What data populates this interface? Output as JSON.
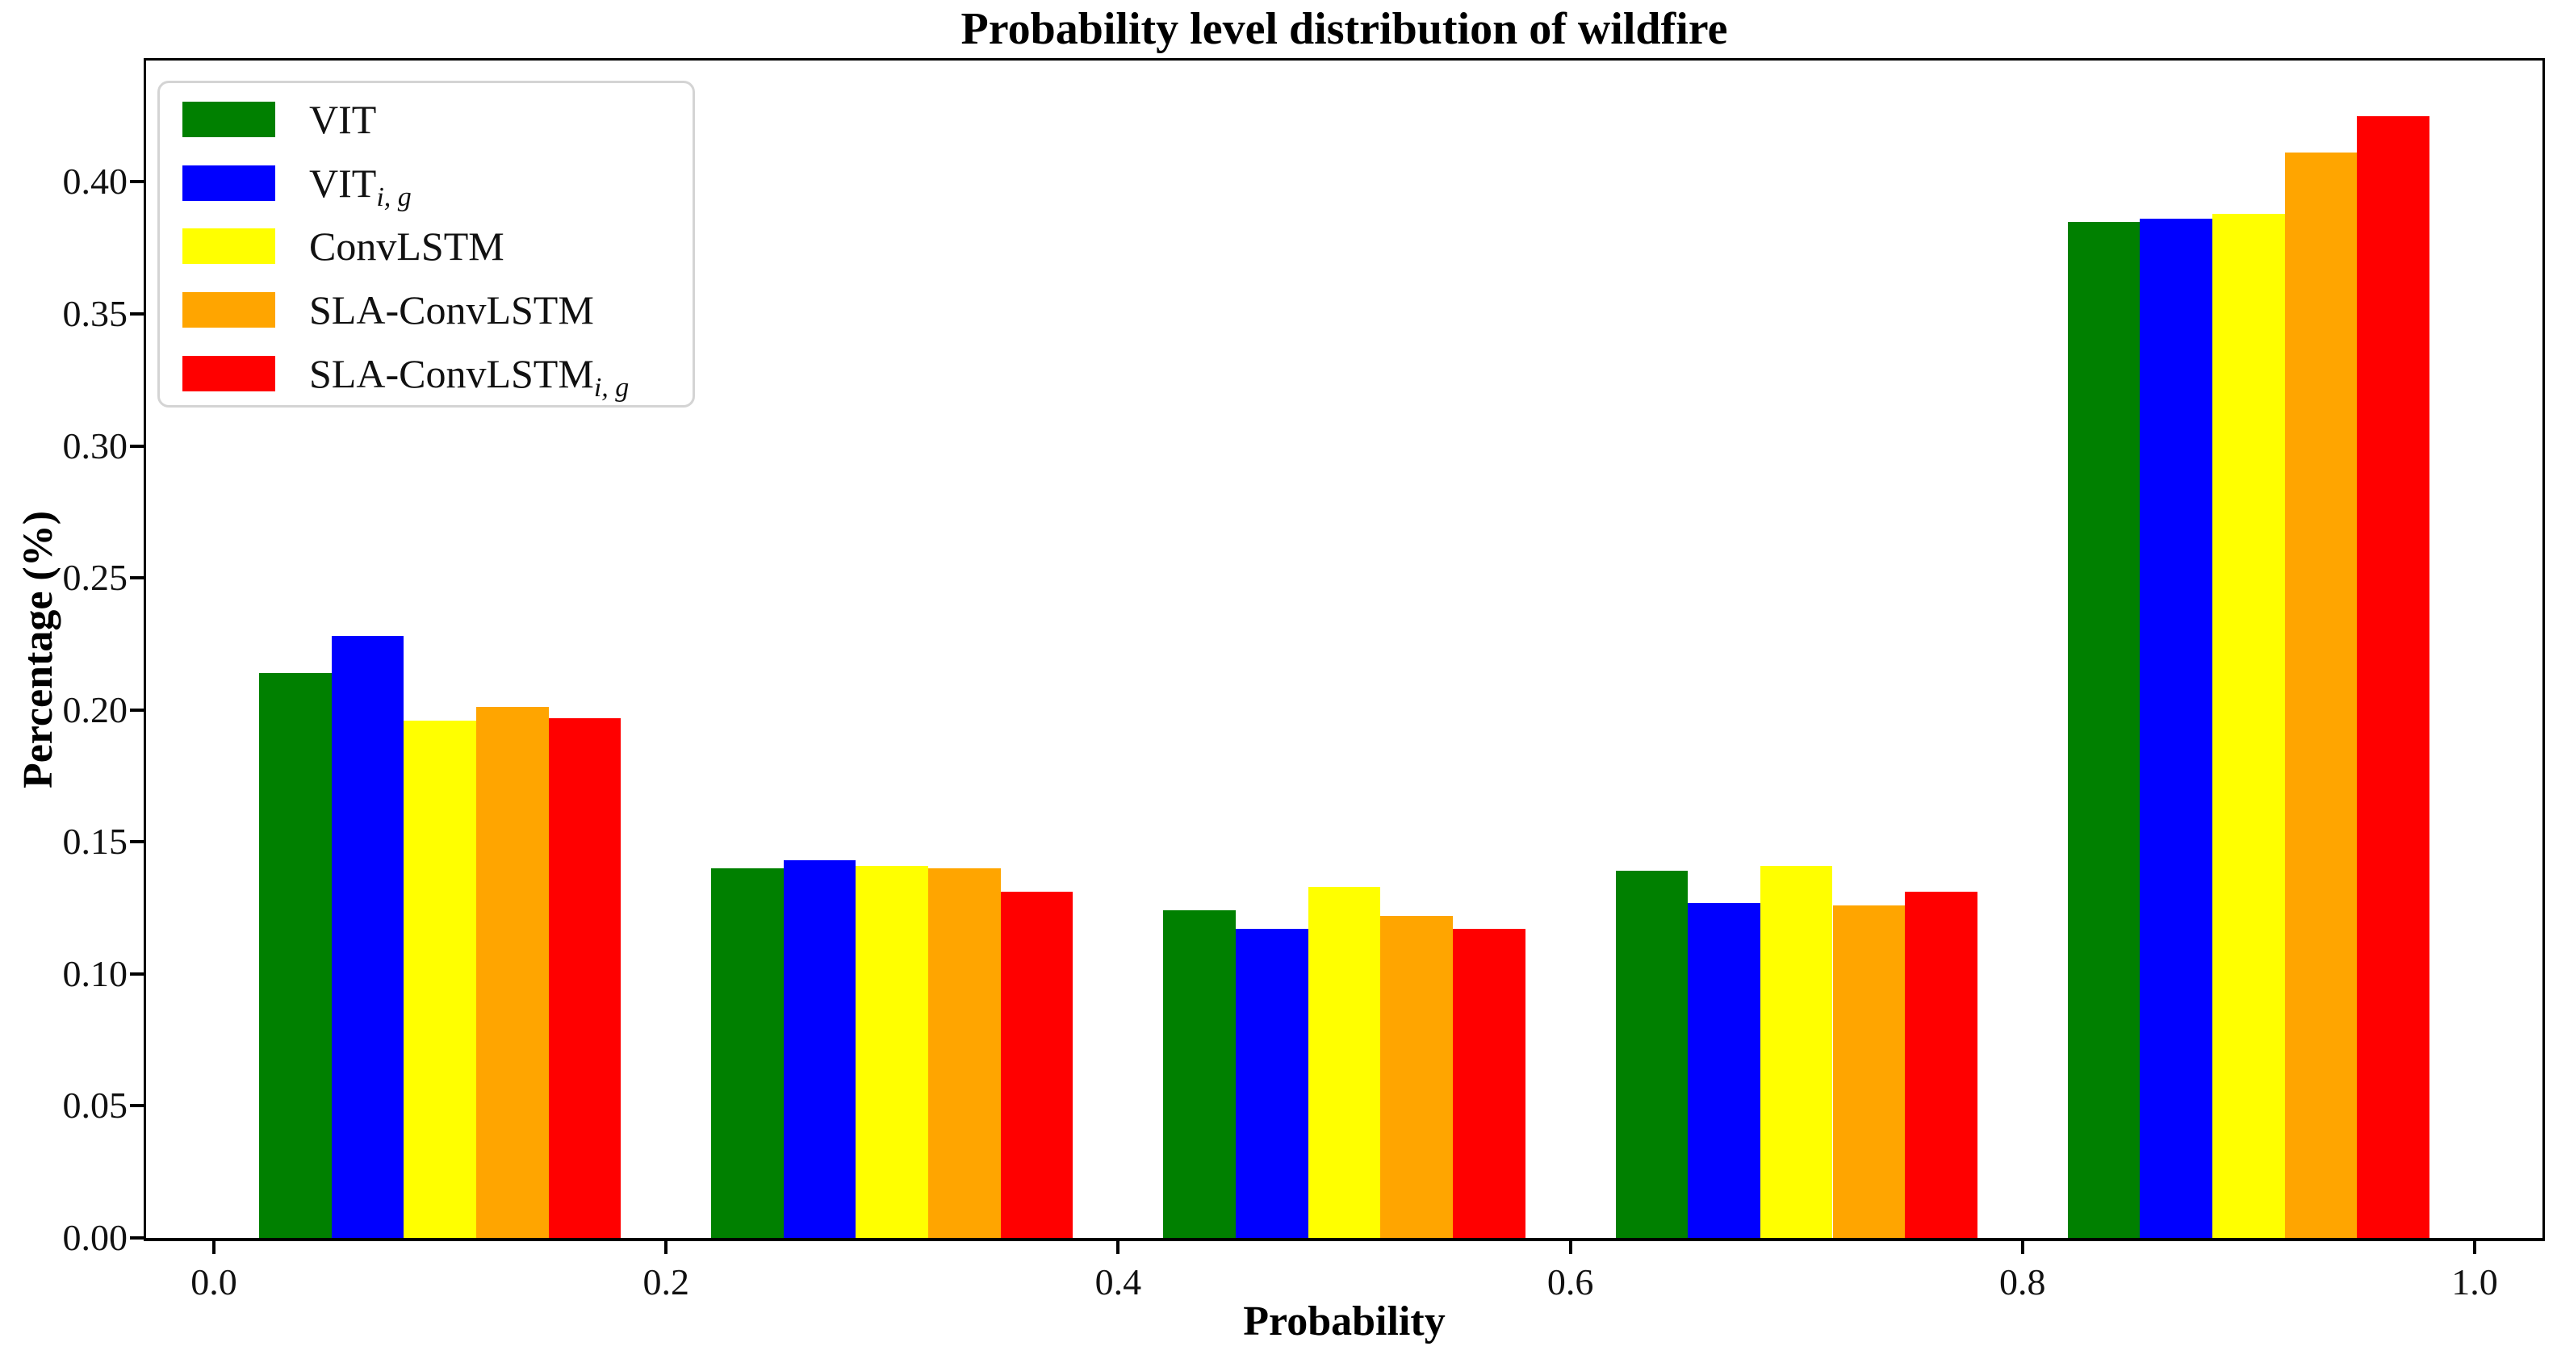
{
  "chart_data": {
    "type": "bar",
    "title": "Probability level distribution of wildfire",
    "xlabel": "Probability",
    "ylabel": "Percentage (%)",
    "categories": [
      0.1,
      0.3,
      0.5,
      0.7,
      0.9
    ],
    "series": [
      {
        "name": "VIT",
        "sub": "",
        "color": "#008000",
        "values": [
          0.214,
          0.14,
          0.124,
          0.139,
          0.385
        ]
      },
      {
        "name": "VIT",
        "sub": "i, g",
        "color": "#0000ff",
        "values": [
          0.228,
          0.143,
          0.117,
          0.127,
          0.386
        ]
      },
      {
        "name": "ConvLSTM",
        "sub": "",
        "color": "#ffff00",
        "values": [
          0.196,
          0.141,
          0.133,
          0.141,
          0.388
        ]
      },
      {
        "name": "SLA-ConvLSTM",
        "sub": "",
        "color": "#ffa500",
        "values": [
          0.201,
          0.14,
          0.122,
          0.126,
          0.411
        ]
      },
      {
        "name": "SLA-ConvLSTM",
        "sub": "i, g",
        "color": "#ff0000",
        "values": [
          0.197,
          0.131,
          0.117,
          0.131,
          0.425
        ]
      }
    ],
    "bar_width": 0.032,
    "xlim": [
      -0.03,
      1.03
    ],
    "ylim": [
      0,
      0.446
    ],
    "y_ticks": [
      "0.00",
      "0.05",
      "0.10",
      "0.15",
      "0.20",
      "0.25",
      "0.30",
      "0.35",
      "0.40"
    ],
    "x_ticks": [
      "0.0",
      "0.2",
      "0.4",
      "0.6",
      "0.8",
      "1.0"
    ],
    "legend_position": "upper left",
    "grid": false,
    "axis_color": "#000000"
  }
}
